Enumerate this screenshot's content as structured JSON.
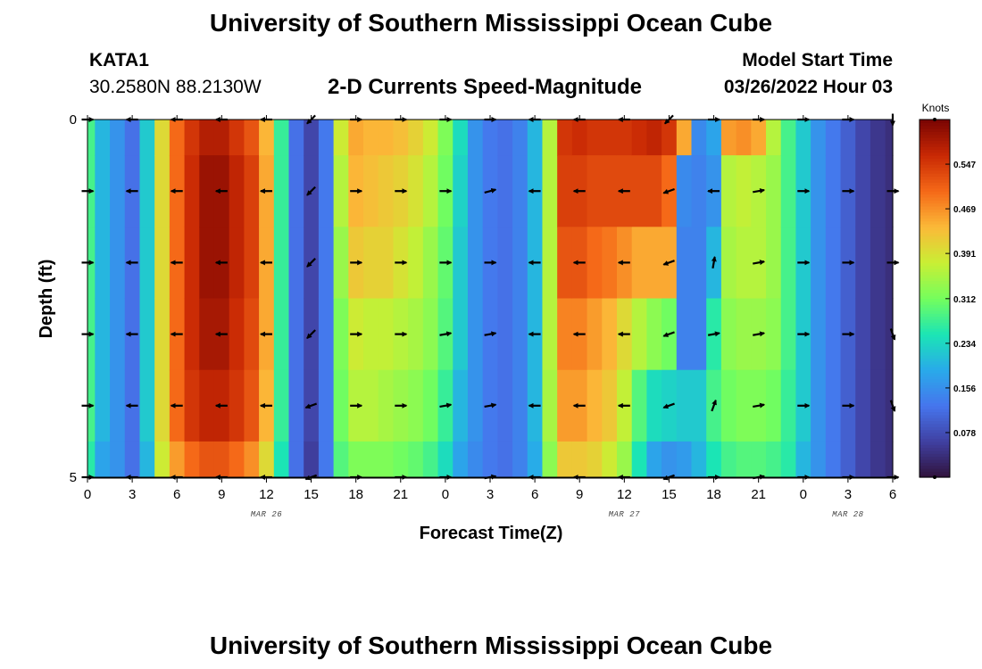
{
  "header": {
    "title": "University of Southern Mississippi Ocean Cube",
    "station": "KATA1",
    "coordinates": "30.2580N  88.2130W",
    "subtitle": "2-D Currents Speed-Magnitude",
    "model_start_label": "Model Start Time",
    "model_start_value": "03/26/2022 Hour 03"
  },
  "footer": {
    "title": "University of Southern Mississippi Ocean Cube"
  },
  "chart_data": {
    "type": "heatmap",
    "title": "2-D Currents Speed-Magnitude",
    "xlabel": "Forecast Time(Z)",
    "ylabel": "Depth (ft)",
    "x_tick_labels": [
      "0",
      "3",
      "6",
      "9",
      "12",
      "15",
      "18",
      "21",
      "0",
      "3",
      "6",
      "9",
      "12",
      "15",
      "18",
      "21",
      "0",
      "3",
      "6"
    ],
    "x_hours": [
      0,
      3,
      6,
      9,
      12,
      15,
      18,
      21,
      24,
      27,
      30,
      33,
      36,
      39,
      42,
      45,
      48,
      51,
      54
    ],
    "xlim_hours": [
      0,
      54
    ],
    "date_labels": [
      {
        "text": "MAR 26",
        "hour": 12
      },
      {
        "text": "MAR 27",
        "hour": 36
      },
      {
        "text": "MAR 28",
        "hour": 51
      }
    ],
    "y_tick_labels": [
      "0",
      "5"
    ],
    "ylim_ft": [
      0,
      5
    ],
    "depth_layers_ft": [
      0,
      1,
      2,
      3,
      4,
      5
    ],
    "colorbar": {
      "unit": "Knots",
      "range": [
        0.0,
        0.625
      ],
      "tick_values": [
        0.078,
        0.156,
        0.234,
        0.312,
        0.391,
        0.469,
        0.547
      ],
      "tick_labels": [
        "0.078",
        "0.156",
        "0.234",
        "0.312",
        "0.391",
        "0.469",
        "0.547"
      ]
    },
    "speed_profile_knots": [
      {
        "hour": 0,
        "values": [
          0.28,
          0.28,
          0.28,
          0.28,
          0.28,
          0.26
        ]
      },
      {
        "hour": 1,
        "values": [
          0.2,
          0.2,
          0.2,
          0.2,
          0.2,
          0.18
        ]
      },
      {
        "hour": 2,
        "values": [
          0.16,
          0.16,
          0.16,
          0.16,
          0.16,
          0.16
        ]
      },
      {
        "hour": 3,
        "values": [
          0.12,
          0.12,
          0.12,
          0.12,
          0.12,
          0.12
        ]
      },
      {
        "hour": 4,
        "values": [
          0.22,
          0.22,
          0.22,
          0.22,
          0.22,
          0.2
        ]
      },
      {
        "hour": 5,
        "values": [
          0.4,
          0.4,
          0.4,
          0.4,
          0.4,
          0.38
        ]
      },
      {
        "hour": 6,
        "values": [
          0.5,
          0.5,
          0.5,
          0.5,
          0.5,
          0.46
        ]
      },
      {
        "hour": 7,
        "values": [
          0.55,
          0.56,
          0.56,
          0.56,
          0.55,
          0.5
        ]
      },
      {
        "hour": 8,
        "values": [
          0.58,
          0.6,
          0.6,
          0.59,
          0.57,
          0.52
        ]
      },
      {
        "hour": 9,
        "values": [
          0.58,
          0.6,
          0.6,
          0.59,
          0.57,
          0.52
        ]
      },
      {
        "hour": 10,
        "values": [
          0.55,
          0.57,
          0.57,
          0.56,
          0.55,
          0.5
        ]
      },
      {
        "hour": 11,
        "values": [
          0.52,
          0.54,
          0.54,
          0.53,
          0.52,
          0.47
        ]
      },
      {
        "hour": 12,
        "values": [
          0.44,
          0.45,
          0.45,
          0.45,
          0.44,
          0.4
        ]
      },
      {
        "hour": 13,
        "values": [
          0.27,
          0.27,
          0.27,
          0.27,
          0.27,
          0.25
        ]
      },
      {
        "hour": 14,
        "values": [
          0.12,
          0.12,
          0.12,
          0.12,
          0.12,
          0.12
        ]
      },
      {
        "hour": 15,
        "values": [
          0.07,
          0.07,
          0.07,
          0.07,
          0.07,
          0.06
        ]
      },
      {
        "hour": 16,
        "values": [
          0.13,
          0.13,
          0.13,
          0.13,
          0.13,
          0.13
        ]
      },
      {
        "hour": 17,
        "values": [
          0.38,
          0.36,
          0.34,
          0.32,
          0.31,
          0.29
        ]
      },
      {
        "hour": 18,
        "values": [
          0.45,
          0.44,
          0.42,
          0.38,
          0.36,
          0.32
        ]
      },
      {
        "hour": 19,
        "values": [
          0.44,
          0.43,
          0.41,
          0.37,
          0.36,
          0.32
        ]
      },
      {
        "hour": 20,
        "values": [
          0.44,
          0.42,
          0.41,
          0.37,
          0.35,
          0.32
        ]
      },
      {
        "hour": 21,
        "values": [
          0.43,
          0.41,
          0.39,
          0.36,
          0.34,
          0.31
        ]
      },
      {
        "hour": 22,
        "values": [
          0.41,
          0.39,
          0.37,
          0.35,
          0.33,
          0.3
        ]
      },
      {
        "hour": 23,
        "values": [
          0.38,
          0.36,
          0.34,
          0.33,
          0.31,
          0.28
        ]
      },
      {
        "hour": 24,
        "values": [
          0.32,
          0.31,
          0.3,
          0.29,
          0.27,
          0.24
        ]
      },
      {
        "hour": 25,
        "values": [
          0.24,
          0.23,
          0.22,
          0.22,
          0.2,
          0.18
        ]
      },
      {
        "hour": 26,
        "values": [
          0.16,
          0.16,
          0.16,
          0.16,
          0.16,
          0.15
        ]
      },
      {
        "hour": 27,
        "values": [
          0.13,
          0.13,
          0.13,
          0.13,
          0.13,
          0.13
        ]
      },
      {
        "hour": 28,
        "values": [
          0.12,
          0.12,
          0.12,
          0.12,
          0.12,
          0.12
        ]
      },
      {
        "hour": 29,
        "values": [
          0.14,
          0.14,
          0.14,
          0.14,
          0.14,
          0.14
        ]
      },
      {
        "hour": 30,
        "values": [
          0.2,
          0.2,
          0.2,
          0.2,
          0.2,
          0.19
        ]
      },
      {
        "hour": 31,
        "values": [
          0.36,
          0.36,
          0.36,
          0.36,
          0.35,
          0.33
        ]
      },
      {
        "hour": 32,
        "values": [
          0.55,
          0.54,
          0.52,
          0.48,
          0.46,
          0.42
        ]
      },
      {
        "hour": 33,
        "values": [
          0.56,
          0.54,
          0.52,
          0.48,
          0.46,
          0.42
        ]
      },
      {
        "hour": 34,
        "values": [
          0.55,
          0.53,
          0.5,
          0.46,
          0.44,
          0.41
        ]
      },
      {
        "hour": 35,
        "values": [
          0.55,
          0.53,
          0.49,
          0.44,
          0.42,
          0.38
        ]
      },
      {
        "hour": 36,
        "values": [
          0.55,
          0.53,
          0.47,
          0.4,
          0.37,
          0.34
        ]
      },
      {
        "hour": 37,
        "values": [
          0.56,
          0.53,
          0.45,
          0.36,
          0.29,
          0.25
        ]
      },
      {
        "hour": 38,
        "values": [
          0.57,
          0.53,
          0.45,
          0.33,
          0.24,
          0.18
        ]
      },
      {
        "hour": 39,
        "values": [
          0.55,
          0.5,
          0.45,
          0.31,
          0.23,
          0.16
        ]
      },
      {
        "hour": 40,
        "values": [
          0.45,
          0.15,
          0.14,
          0.14,
          0.22,
          0.17
        ]
      },
      {
        "hour": 41,
        "values": [
          0.15,
          0.14,
          0.14,
          0.14,
          0.22,
          0.2
        ]
      },
      {
        "hour": 42,
        "values": [
          0.18,
          0.16,
          0.2,
          0.26,
          0.28,
          0.25
        ]
      },
      {
        "hour": 43,
        "values": [
          0.46,
          0.36,
          0.35,
          0.33,
          0.31,
          0.28
        ]
      },
      {
        "hour": 44,
        "values": [
          0.47,
          0.37,
          0.36,
          0.34,
          0.32,
          0.29
        ]
      },
      {
        "hour": 45,
        "values": [
          0.45,
          0.36,
          0.36,
          0.34,
          0.32,
          0.29
        ]
      },
      {
        "hour": 46,
        "values": [
          0.36,
          0.34,
          0.34,
          0.33,
          0.31,
          0.28
        ]
      },
      {
        "hour": 47,
        "values": [
          0.28,
          0.28,
          0.28,
          0.28,
          0.27,
          0.26
        ]
      },
      {
        "hour": 48,
        "values": [
          0.22,
          0.22,
          0.22,
          0.22,
          0.22,
          0.2
        ]
      },
      {
        "hour": 49,
        "values": [
          0.16,
          0.16,
          0.16,
          0.16,
          0.16,
          0.16
        ]
      },
      {
        "hour": 50,
        "values": [
          0.13,
          0.13,
          0.13,
          0.13,
          0.13,
          0.13
        ]
      },
      {
        "hour": 51,
        "values": [
          0.1,
          0.1,
          0.1,
          0.1,
          0.1,
          0.1
        ]
      },
      {
        "hour": 52,
        "values": [
          0.07,
          0.07,
          0.07,
          0.07,
          0.07,
          0.07
        ]
      },
      {
        "hour": 53,
        "values": [
          0.05,
          0.05,
          0.05,
          0.05,
          0.05,
          0.05
        ]
      },
      {
        "hour": 54,
        "values": [
          0.04,
          0.04,
          0.04,
          0.04,
          0.04,
          0.04
        ]
      }
    ],
    "vector_hours": [
      0,
      3,
      6,
      9,
      12,
      15,
      18,
      21,
      24,
      27,
      30,
      33,
      36,
      39,
      42,
      45,
      48,
      51,
      54
    ],
    "vector_depths_ft": [
      0,
      1,
      2,
      3,
      4,
      5
    ],
    "vector_direction_deg": [
      [
        0,
        180,
        180,
        180,
        180,
        225,
        0,
        0,
        0,
        0,
        180,
        180,
        180,
        225,
        0,
        0,
        0,
        0,
        270
      ],
      [
        0,
        180,
        180,
        180,
        180,
        225,
        0,
        0,
        0,
        15,
        180,
        180,
        180,
        200,
        180,
        10,
        0,
        0,
        0
      ],
      [
        0,
        180,
        180,
        180,
        180,
        225,
        0,
        0,
        0,
        0,
        180,
        180,
        180,
        200,
        80,
        10,
        0,
        0,
        0
      ],
      [
        0,
        180,
        180,
        180,
        180,
        225,
        0,
        0,
        10,
        10,
        180,
        180,
        180,
        200,
        10,
        10,
        0,
        0,
        290
      ],
      [
        0,
        180,
        180,
        180,
        180,
        200,
        0,
        0,
        10,
        10,
        180,
        180,
        180,
        200,
        70,
        10,
        0,
        0,
        290
      ],
      [
        0,
        180,
        180,
        180,
        180,
        200,
        0,
        0,
        0,
        10,
        180,
        180,
        180,
        200,
        0,
        10,
        0,
        0,
        0
      ]
    ]
  }
}
